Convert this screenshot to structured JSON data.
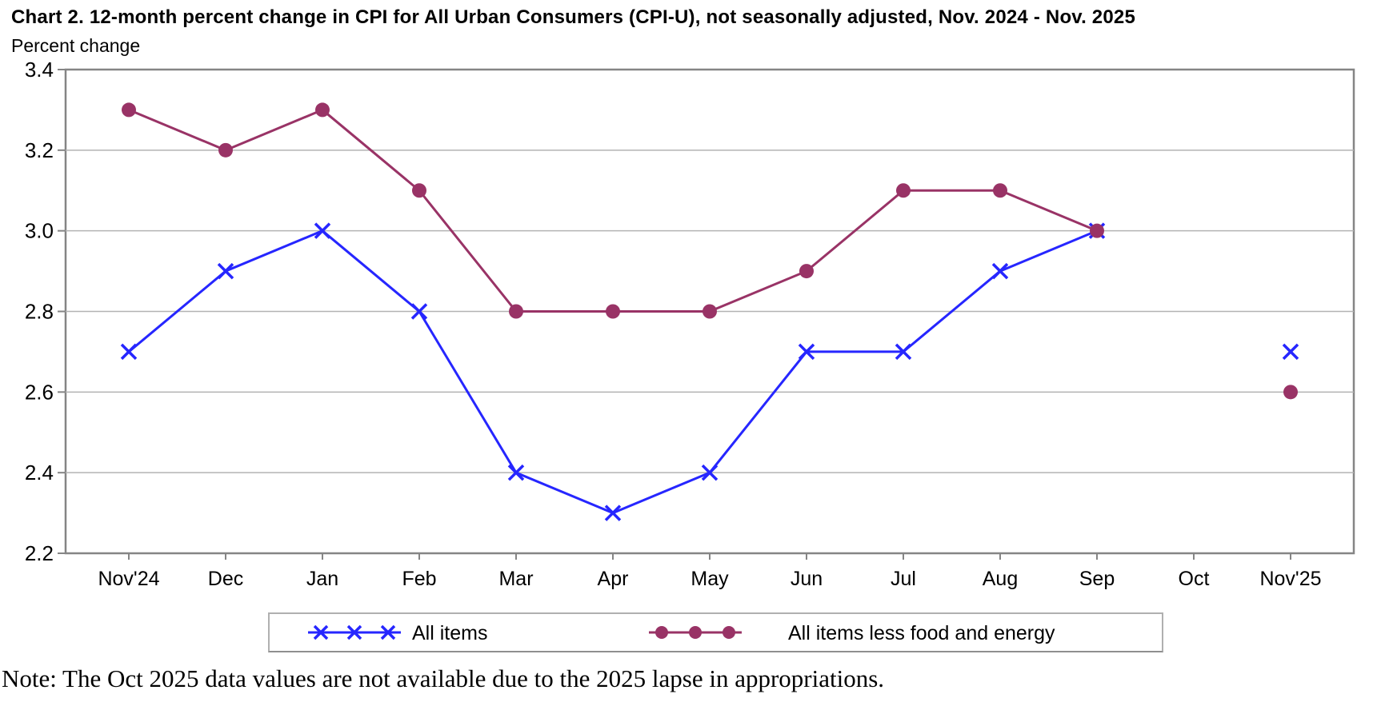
{
  "title": "Chart 2. 12-month percent change in CPI for All Urban Consumers (CPI-U), not seasonally adjusted, Nov. 2024 - Nov. 2025",
  "y_axis_title": "Percent change",
  "note": "Note: The Oct 2025 data values are not available due to the 2025 lapse in appropriations.",
  "colors": {
    "all_items": "#2626ff",
    "core": "#993366",
    "gridline": "#b3b3b3",
    "axis_border": "#858585",
    "text": "#000000"
  },
  "chart_data": {
    "type": "line",
    "title": "Chart 2. 12-month percent change in CPI for All Urban Consumers (CPI-U), not seasonally adjusted, Nov. 2024 - Nov. 2025",
    "xlabel": "",
    "ylabel": "Percent change",
    "ylim": [
      2.2,
      3.4
    ],
    "yticks": [
      3.4,
      3.2,
      3.0,
      2.8,
      2.6,
      2.4,
      2.2
    ],
    "grid": true,
    "legend_position": "bottom",
    "categories": [
      "Nov'24",
      "Dec",
      "Jan",
      "Feb",
      "Mar",
      "Apr",
      "May",
      "Jun",
      "Jul",
      "Aug",
      "Sep",
      "Oct",
      "Nov'25"
    ],
    "series": [
      {
        "name": "All items",
        "color": "#2626ff",
        "marker": "x",
        "values": [
          2.7,
          2.9,
          3.0,
          2.8,
          2.4,
          2.3,
          2.4,
          2.7,
          2.7,
          2.9,
          3.0,
          null,
          2.7
        ]
      },
      {
        "name": "All items less food and energy",
        "color": "#993366",
        "marker": "circle",
        "values": [
          3.3,
          3.2,
          3.3,
          3.1,
          2.8,
          2.8,
          2.8,
          2.9,
          3.1,
          3.1,
          3.0,
          null,
          2.6
        ]
      }
    ],
    "annotation": "Oct 2025 values missing (lapse in appropriations); Nov'25 points are isolated markers not connected by lines"
  }
}
